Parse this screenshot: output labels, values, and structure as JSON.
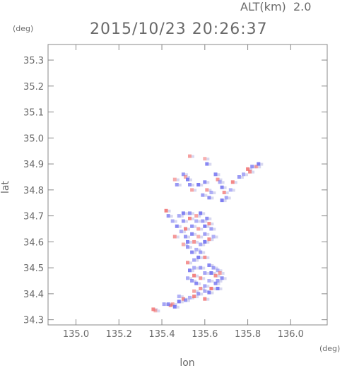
{
  "chart_data": {
    "type": "heatmap",
    "altitude_label": "ALT(km)  2.0",
    "timestamp": "2015/10/23 20:26:37",
    "xlabel": "lon",
    "ylabel": "lat",
    "x_unit": "(deg)",
    "y_unit": "(deg)",
    "xlim": [
      134.87,
      136.17
    ],
    "ylim": [
      34.28,
      35.36
    ],
    "x_ticks": [
      "135.0",
      "135.2",
      "135.4",
      "135.6",
      "135.8",
      "136.0"
    ],
    "y_ticks": [
      "34.3",
      "34.4",
      "34.5",
      "34.6",
      "34.7",
      "34.8",
      "34.9",
      "35.0",
      "35.1",
      "35.2",
      "35.3"
    ],
    "grid": false,
    "colors": {
      "positive": "#f07070",
      "negative": "#7070f0",
      "neutral": "#d8d8f0",
      "frame": "#888888"
    },
    "points": [
      [
        135.37,
        34.335,
        1
      ],
      [
        135.36,
        34.34,
        1
      ],
      [
        135.44,
        34.355,
        1
      ],
      [
        135.45,
        34.36,
        1
      ],
      [
        135.46,
        34.35,
        -1
      ],
      [
        135.43,
        34.36,
        -1
      ],
      [
        135.41,
        34.36,
        -1
      ],
      [
        135.48,
        34.37,
        -1
      ],
      [
        135.5,
        34.38,
        1
      ],
      [
        135.51,
        34.375,
        -1
      ],
      [
        135.53,
        34.385,
        -1
      ],
      [
        135.55,
        34.39,
        1
      ],
      [
        135.57,
        34.4,
        -1
      ],
      [
        135.6,
        34.41,
        -1
      ],
      [
        135.62,
        34.405,
        -1
      ],
      [
        135.58,
        34.42,
        1
      ],
      [
        135.6,
        34.43,
        -1
      ],
      [
        135.63,
        34.42,
        1
      ],
      [
        135.65,
        34.44,
        -1
      ],
      [
        135.66,
        34.45,
        -1
      ],
      [
        135.62,
        34.45,
        -1
      ],
      [
        135.56,
        34.44,
        -1
      ],
      [
        135.54,
        34.45,
        -1
      ],
      [
        135.52,
        34.46,
        -1
      ],
      [
        135.55,
        34.47,
        1
      ],
      [
        135.58,
        34.46,
        1
      ],
      [
        135.6,
        34.48,
        -1
      ],
      [
        135.63,
        34.48,
        -1
      ],
      [
        135.65,
        34.47,
        1
      ],
      [
        135.64,
        34.5,
        -1
      ],
      [
        135.66,
        34.49,
        -1
      ],
      [
        135.62,
        34.51,
        -1
      ],
      [
        135.58,
        34.5,
        -1
      ],
      [
        135.55,
        34.5,
        -1
      ],
      [
        135.53,
        34.49,
        -1
      ],
      [
        135.52,
        34.52,
        1
      ],
      [
        135.55,
        34.53,
        -1
      ],
      [
        135.57,
        34.54,
        -1
      ],
      [
        135.6,
        34.54,
        1
      ],
      [
        135.58,
        34.56,
        -1
      ],
      [
        135.56,
        34.57,
        -1
      ],
      [
        135.54,
        34.56,
        -1
      ],
      [
        135.52,
        34.58,
        -1
      ],
      [
        135.5,
        34.59,
        1
      ],
      [
        135.52,
        34.6,
        -1
      ],
      [
        135.55,
        34.6,
        1
      ],
      [
        135.58,
        34.59,
        -1
      ],
      [
        135.6,
        34.6,
        -1
      ],
      [
        135.62,
        34.61,
        1
      ],
      [
        135.6,
        34.63,
        -1
      ],
      [
        135.57,
        34.62,
        1
      ],
      [
        135.54,
        34.63,
        -1
      ],
      [
        135.51,
        34.62,
        -1
      ],
      [
        135.49,
        34.64,
        -1
      ],
      [
        135.51,
        34.65,
        1
      ],
      [
        135.54,
        34.66,
        -1
      ],
      [
        135.57,
        34.65,
        1
      ],
      [
        135.6,
        34.66,
        -1
      ],
      [
        135.62,
        34.67,
        1
      ],
      [
        135.59,
        34.68,
        -1
      ],
      [
        135.56,
        34.68,
        -1
      ],
      [
        135.53,
        34.69,
        1
      ],
      [
        135.5,
        34.68,
        -1
      ],
      [
        135.48,
        34.7,
        -1
      ],
      [
        135.5,
        34.71,
        -1
      ],
      [
        135.53,
        34.71,
        -1
      ],
      [
        135.56,
        34.7,
        1
      ],
      [
        135.58,
        34.71,
        -1
      ],
      [
        135.61,
        34.69,
        -1
      ],
      [
        135.63,
        34.65,
        -1
      ],
      [
        135.64,
        34.62,
        -1
      ],
      [
        135.47,
        34.66,
        -1
      ],
      [
        135.46,
        34.62,
        1
      ],
      [
        135.45,
        34.68,
        -1
      ],
      [
        135.42,
        34.72,
        1
      ],
      [
        135.43,
        34.7,
        -1
      ],
      [
        135.55,
        34.41,
        1
      ],
      [
        135.66,
        34.42,
        -1
      ],
      [
        135.68,
        34.46,
        -1
      ],
      [
        135.67,
        34.48,
        1
      ],
      [
        135.48,
        34.39,
        -1
      ],
      [
        135.6,
        34.38,
        1
      ],
      [
        135.5,
        34.86,
        -1
      ],
      [
        135.51,
        34.85,
        1
      ],
      [
        135.52,
        34.84,
        -1
      ],
      [
        135.53,
        34.82,
        -1
      ],
      [
        135.54,
        34.8,
        1
      ],
      [
        135.57,
        34.82,
        -1
      ],
      [
        135.6,
        34.83,
        -1
      ],
      [
        135.61,
        34.8,
        1
      ],
      [
        135.63,
        34.79,
        -1
      ],
      [
        135.65,
        34.86,
        -1
      ],
      [
        135.66,
        34.84,
        1
      ],
      [
        135.67,
        34.83,
        -1
      ],
      [
        135.68,
        34.81,
        -1
      ],
      [
        135.69,
        34.79,
        1
      ],
      [
        135.7,
        34.77,
        -1
      ],
      [
        135.68,
        34.76,
        -1
      ],
      [
        135.62,
        34.77,
        -1
      ],
      [
        135.59,
        34.78,
        -1
      ],
      [
        135.72,
        34.8,
        -1
      ],
      [
        135.73,
        34.83,
        1
      ],
      [
        135.76,
        34.85,
        -1
      ],
      [
        135.78,
        34.86,
        -1
      ],
      [
        135.8,
        34.88,
        1
      ],
      [
        135.82,
        34.89,
        -1
      ],
      [
        135.84,
        34.89,
        1
      ],
      [
        135.85,
        34.9,
        -1
      ],
      [
        135.81,
        34.87,
        1
      ],
      [
        135.53,
        34.93,
        1
      ],
      [
        135.6,
        34.92,
        1
      ],
      [
        135.61,
        34.9,
        -1
      ],
      [
        135.47,
        34.82,
        -1
      ],
      [
        135.46,
        34.84,
        1
      ]
    ]
  }
}
